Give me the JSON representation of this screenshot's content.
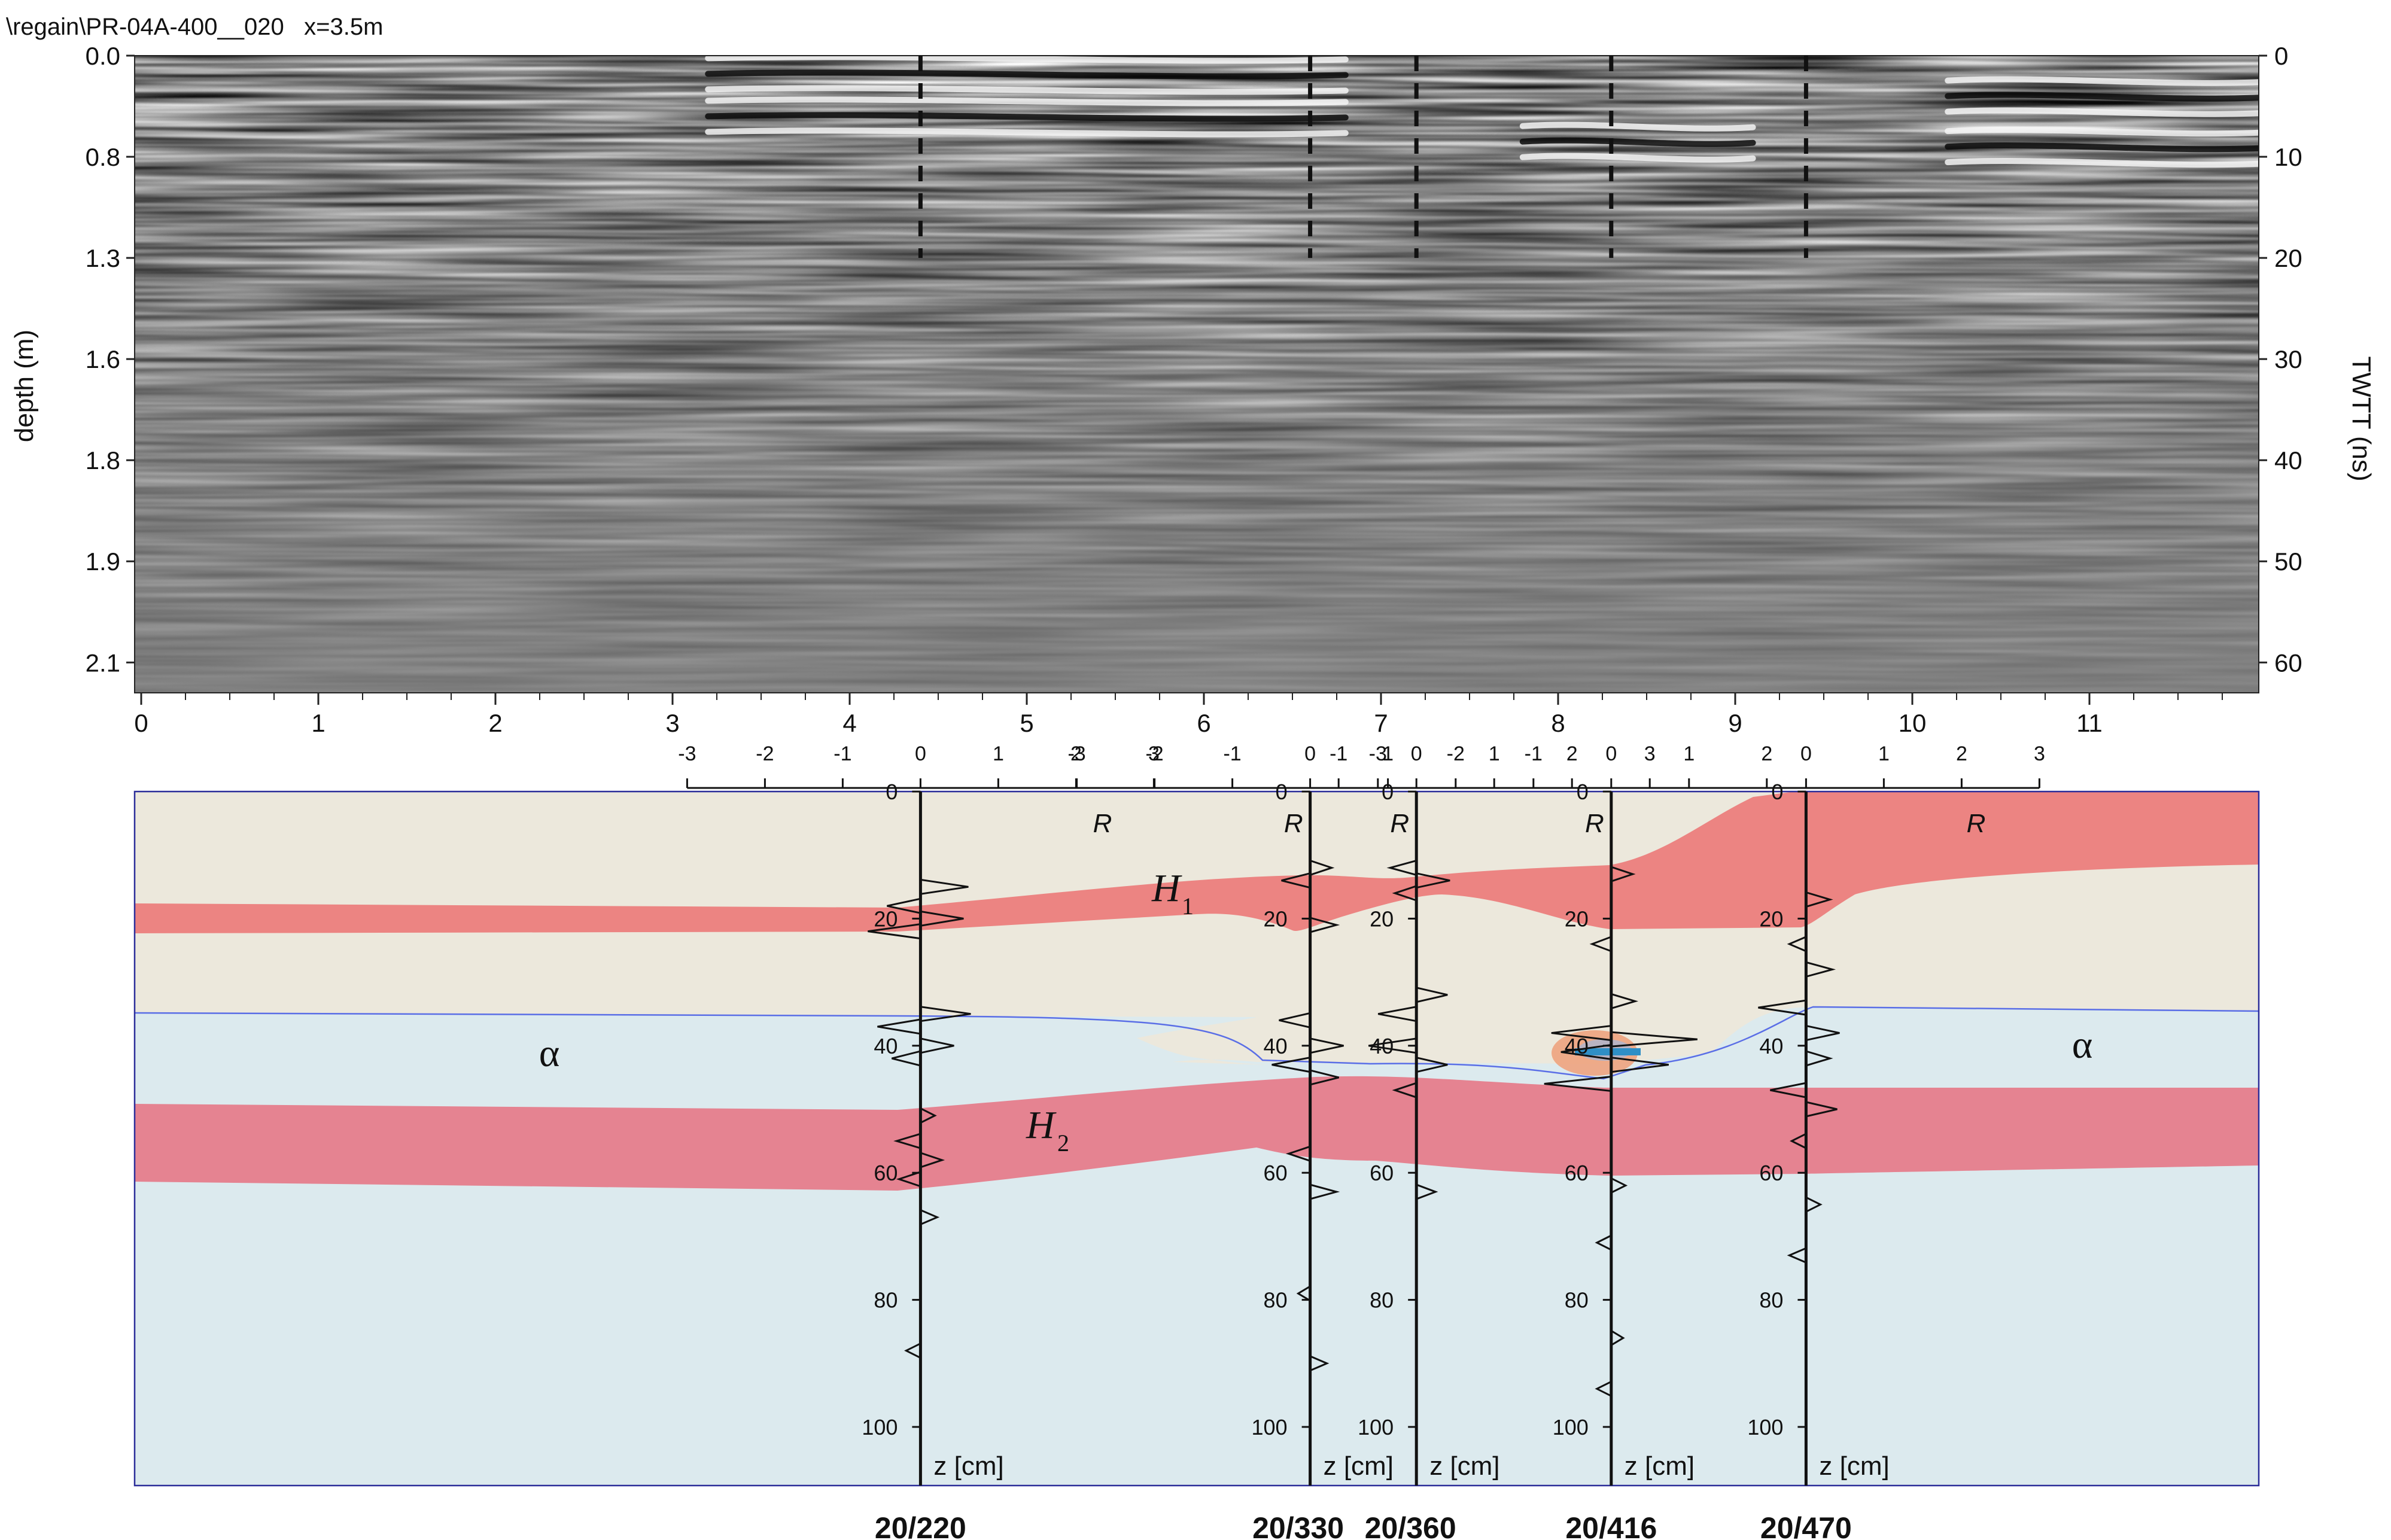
{
  "radargram": {
    "title": "\\regain\\PR-04A-400__020   x=3.5m",
    "left_axis_label": "depth (m)",
    "right_axis_label": "TWTT (ns)",
    "depth_ticks": [
      "0.0",
      "0.8",
      "1.3",
      "1.6",
      "1.8",
      "1.9",
      "2.1"
    ],
    "twtt_ticks": [
      "0",
      "10",
      "20",
      "30",
      "40",
      "50",
      "60"
    ],
    "x_ticks": [
      "0",
      "1",
      "2",
      "3",
      "4",
      "5",
      "6",
      "7",
      "8",
      "9",
      "10",
      "11"
    ],
    "x_range_m": [
      0,
      12
    ],
    "twtt_range_ns": [
      0,
      63
    ],
    "bright_reflectors": [
      {
        "x_from_m": 3.2,
        "x_to_m": 6.8,
        "twtt_ns": 1.8
      },
      {
        "x_from_m": 3.2,
        "x_to_m": 6.8,
        "twtt_ns": 6.0
      },
      {
        "x_from_m": 7.8,
        "x_to_m": 9.1,
        "twtt_ns": 8.5
      },
      {
        "x_from_m": 10.2,
        "x_to_m": 12.0,
        "twtt_ns": 4.0
      },
      {
        "x_from_m": 10.2,
        "x_to_m": 12.0,
        "twtt_ns": 9.0
      }
    ],
    "marker_positions_m": [
      4.4,
      6.6,
      7.2,
      8.3,
      9.4
    ],
    "marker_twtt_end_ns": 20
  },
  "profile": {
    "depth_range_cm": [
      0,
      110
    ],
    "depth_ticks": [
      "0",
      "20",
      "40",
      "60",
      "80",
      "100"
    ],
    "depth_unit_label": "z [cm]",
    "reflectance_label": "R",
    "reflectance_ticks": [
      "-3",
      "-2",
      "-1",
      "0",
      "1",
      "2",
      "3"
    ],
    "layer_labels": {
      "h1": "H",
      "h1_sub": "1",
      "h2": "H",
      "h2_sub": "2",
      "alpha_left": "α",
      "alpha_right": "α"
    },
    "colors": {
      "sand": "#ece8dc",
      "water": "#dceaee",
      "horizon_upper": "#ec8482",
      "horizon_lower": "#e58391",
      "water_table": "#5a6ee6"
    },
    "boreholes": [
      {
        "name": "20/220",
        "x_m": 4.4
      },
      {
        "name": "20/330",
        "x_m": 6.6
      },
      {
        "name": "20/360",
        "x_m": 7.2
      },
      {
        "name": "20/416",
        "x_m": 8.3
      },
      {
        "name": "20/470",
        "x_m": 9.4
      }
    ]
  }
}
